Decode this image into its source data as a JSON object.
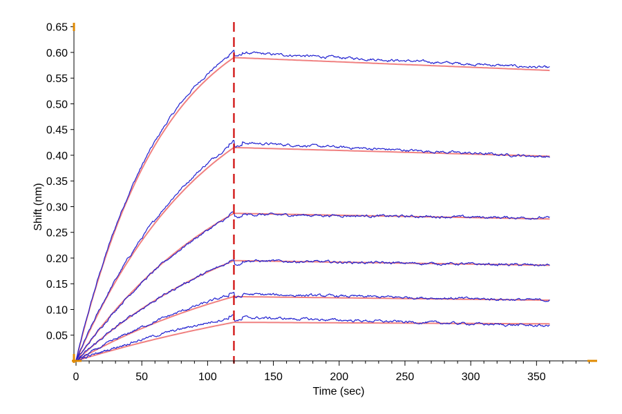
{
  "chart_data": {
    "type": "line",
    "title": "",
    "xlabel": "Time (sec)",
    "ylabel": "Shift (nm)",
    "xlim": [
      0,
      395
    ],
    "ylim": [
      0.0,
      0.655
    ],
    "xticks": [
      0,
      50,
      100,
      150,
      200,
      250,
      300,
      350
    ],
    "yticks": [
      0.05,
      0.1,
      0.15,
      0.2,
      0.25,
      0.3,
      0.35,
      0.4,
      0.45,
      0.5,
      0.55,
      0.6,
      0.65
    ],
    "association_end": 120,
    "end_time": 360,
    "grid": false,
    "legend": "none",
    "colors": {
      "measured": "#1f1fd0",
      "fit": "#f08080",
      "marker": "#d42020",
      "axis": "#e08a00"
    },
    "series": [
      {
        "kind": "measured",
        "plateau": 0.6,
        "k": 0.015,
        "end": 0.57
      },
      {
        "kind": "fit",
        "plateau": 0.59,
        "k": 0.015,
        "end": 0.565
      },
      {
        "kind": "measured",
        "plateau": 0.425,
        "k": 0.01,
        "end": 0.397
      },
      {
        "kind": "fit",
        "plateau": 0.415,
        "k": 0.01,
        "end": 0.398
      },
      {
        "kind": "measured",
        "plateau": 0.285,
        "k": 0.008,
        "end": 0.278
      },
      {
        "kind": "fit",
        "plateau": 0.287,
        "k": 0.008,
        "end": 0.276
      },
      {
        "kind": "measured",
        "plateau": 0.195,
        "k": 0.007,
        "end": 0.186
      },
      {
        "kind": "fit",
        "plateau": 0.195,
        "k": 0.007,
        "end": 0.186
      },
      {
        "kind": "measured",
        "plateau": 0.13,
        "k": 0.006,
        "end": 0.118
      },
      {
        "kind": "fit",
        "plateau": 0.125,
        "k": 0.006,
        "end": 0.118
      },
      {
        "kind": "measured",
        "plateau": 0.085,
        "k": 0.005,
        "end": 0.068
      },
      {
        "kind": "fit",
        "plateau": 0.075,
        "k": 0.004,
        "end": 0.072
      }
    ]
  }
}
